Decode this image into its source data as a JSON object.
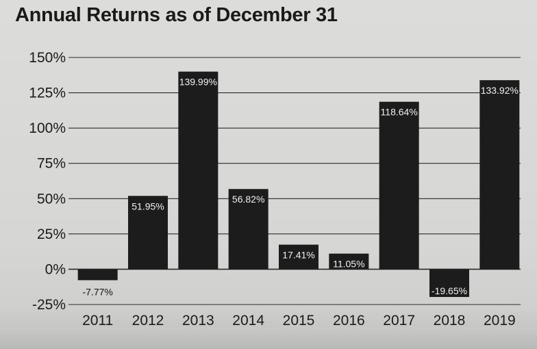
{
  "chart_data": {
    "type": "bar",
    "title": "Annual Returns as of December 31",
    "categories": [
      "2011",
      "2012",
      "2013",
      "2014",
      "2015",
      "2016",
      "2017",
      "2018",
      "2019"
    ],
    "values": [
      -7.77,
      51.95,
      139.99,
      56.82,
      17.41,
      11.05,
      118.64,
      -19.65,
      133.92
    ],
    "data_labels": [
      "-7.77%",
      "51.95%",
      "139.99%",
      "56.82%",
      "17.41%",
      "11.05%",
      "118.64%",
      "-19.65%",
      "133.92%"
    ],
    "ylim": [
      -25,
      150
    ],
    "yticks": [
      150,
      125,
      100,
      75,
      50,
      25,
      0,
      -25
    ],
    "ytick_labels": [
      "150%",
      "125%",
      "100%",
      "75%",
      "50%",
      "25%",
      "0%",
      "-25%"
    ],
    "xlabel": "",
    "ylabel": "",
    "grid": true,
    "bar_color": "#1c1c1c",
    "grid_color": "#2a2a2a"
  }
}
